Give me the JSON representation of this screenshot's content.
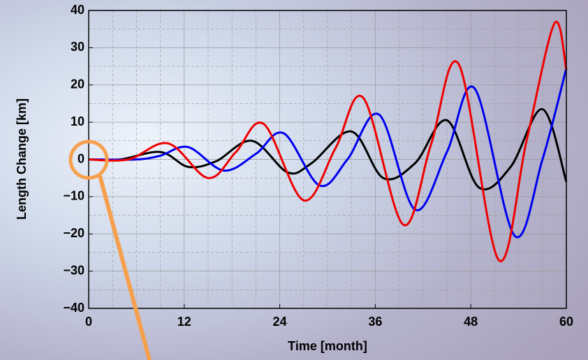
{
  "chart_data": {
    "type": "line",
    "xlabel": "Time [month]",
    "ylabel": "Length Change [km]",
    "xlim": [
      0,
      60
    ],
    "xticks": [
      0,
      12,
      24,
      36,
      48,
      60
    ],
    "ylim": [
      -40,
      40
    ],
    "yticks": [
      {
        "value": -40,
        "label": "−40"
      },
      {
        "value": -30,
        "label": "−30"
      },
      {
        "value": -20,
        "label": "−20"
      },
      {
        "value": -10,
        "label": "−10"
      },
      0,
      10,
      20,
      30,
      40
    ],
    "grid": true,
    "series": [
      {
        "color": "#000000",
        "x": [
          0,
          4,
          9,
          12.5,
          16,
          20.5,
          25,
          28,
          33,
          37,
          41,
          45,
          49,
          53,
          57,
          60
        ],
        "values": [
          0,
          0,
          2,
          -2,
          -0.5,
          5,
          -3.5,
          -1,
          7.5,
          -5,
          -1,
          10.5,
          -7.5,
          -2,
          13.5,
          -6
        ]
      },
      {
        "color": "#0000ee",
        "x": [
          0,
          6,
          9,
          12.5,
          17,
          21,
          24.5,
          29,
          32.5,
          36.5,
          41,
          45,
          48.5,
          53.5,
          57,
          60
        ],
        "values": [
          0,
          0,
          1,
          3.3,
          -3,
          1.5,
          7,
          -7,
          0,
          12,
          -13.5,
          2,
          19,
          -20.5,
          0,
          24.5
        ]
      },
      {
        "color": "#ee0000",
        "x": [
          0,
          5,
          10,
          15,
          18.5,
          22,
          27,
          31,
          34.5,
          39.5,
          43,
          46.5,
          51.5,
          55,
          58.5,
          60
        ],
        "values": [
          0,
          0,
          4.3,
          -5,
          2,
          9.5,
          -11,
          3,
          16.5,
          -17.5,
          4,
          25.5,
          -27,
          5,
          36.5,
          24
        ]
      }
    ]
  }
}
